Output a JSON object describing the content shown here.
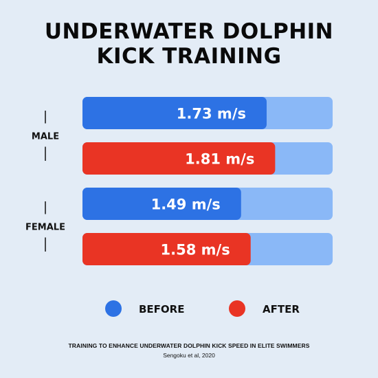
{
  "title_lines": [
    "UNDERWATER DOLPHIN",
    "KICK TRAINING"
  ],
  "chart_data": {
    "type": "bar",
    "orientation": "horizontal",
    "groups": [
      "MALE",
      "FEMALE"
    ],
    "series": [
      {
        "name": "BEFORE",
        "color": "#2d72e4",
        "values": [
          1.73,
          1.49
        ],
        "labels": [
          "1.73 m/s",
          "1.49 m/s"
        ]
      },
      {
        "name": "AFTER",
        "color": "#e93424",
        "values": [
          1.81,
          1.58
        ],
        "labels": [
          "1.81 m/s",
          "1.58 m/s"
        ]
      }
    ],
    "track_color": "#8ab8f7",
    "xlim": [
      0,
      2.35
    ],
    "unit": "m/s",
    "legend_position": "bottom"
  },
  "footer": {
    "title": "TRAINING TO ENHANCE UNDERWATER DOLPHIN KICK SPEED IN ELITE SWIMMERS",
    "citation": "Sengoku et al, 2020"
  }
}
